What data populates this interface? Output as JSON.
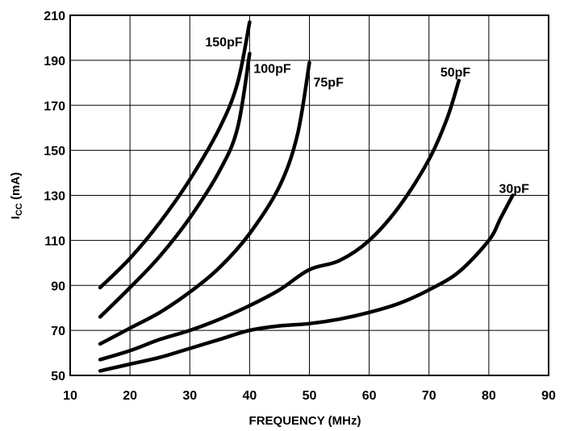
{
  "chart_data": {
    "type": "line",
    "title": "",
    "xlabel": "FREQUENCY (MHz)",
    "ylabel": "ICC (mA)",
    "ylabel_main": "I",
    "ylabel_sub": "CC",
    "ylabel_unit": " (mA)",
    "xlim": [
      10,
      90
    ],
    "ylim": [
      50,
      210
    ],
    "xticks": [
      10,
      20,
      30,
      40,
      50,
      60,
      70,
      80,
      90
    ],
    "yticks": [
      50,
      70,
      90,
      110,
      130,
      150,
      170,
      190,
      210
    ],
    "grid": true,
    "series": [
      {
        "name": "150pF",
        "x": [
          15,
          20,
          25,
          30,
          35,
          38,
          40
        ],
        "y": [
          89,
          102,
          118,
          137,
          160,
          180,
          207
        ]
      },
      {
        "name": "100pF",
        "x": [
          15,
          20,
          25,
          30,
          35,
          38,
          40
        ],
        "y": [
          76,
          89,
          103,
          120,
          141,
          160,
          193
        ]
      },
      {
        "name": "75pF",
        "x": [
          15,
          20,
          25,
          30,
          35,
          40,
          45,
          48,
          50
        ],
        "y": [
          64,
          71,
          78,
          87,
          98,
          113,
          134,
          157,
          189
        ]
      },
      {
        "name": "50pF",
        "x": [
          15,
          20,
          25,
          30,
          35,
          40,
          45,
          50,
          55,
          60,
          65,
          70,
          73,
          75
        ],
        "y": [
          57,
          61,
          66,
          70,
          75,
          81,
          88,
          97,
          101,
          110,
          125,
          146,
          164,
          181
        ]
      },
      {
        "name": "30pF",
        "x": [
          15,
          20,
          25,
          30,
          35,
          40,
          45,
          50,
          55,
          60,
          65,
          70,
          75,
          80,
          82,
          84
        ],
        "y": [
          52,
          55,
          58,
          62,
          66,
          70,
          72,
          73,
          75,
          78,
          82,
          88,
          96,
          110,
          120,
          130
        ]
      }
    ]
  }
}
